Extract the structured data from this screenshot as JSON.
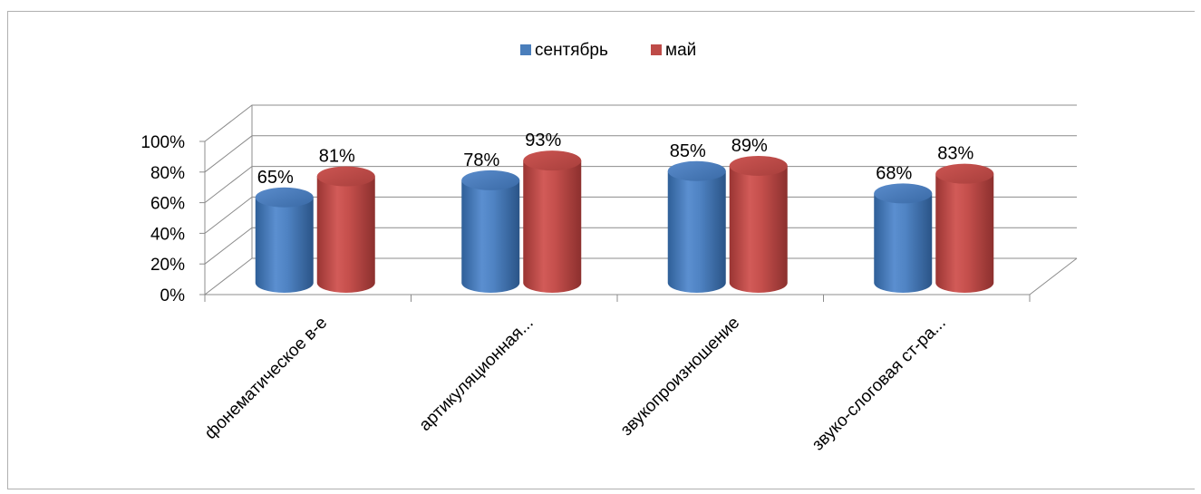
{
  "chart_data": {
    "type": "bar",
    "categories": [
      "фонематическое в-е",
      "артикуляционная...",
      "звукопроизношение",
      "звуко-слоговая ст-ра..."
    ],
    "series": [
      {
        "name": "сентябрь",
        "values": [
          65,
          78,
          85,
          68
        ],
        "labels": [
          "65%",
          "78%",
          "85%",
          "68%"
        ],
        "color": "#4a7ebb"
      },
      {
        "name": "май",
        "values": [
          81,
          93,
          89,
          83
        ],
        "labels": [
          "81%",
          "93%",
          "89%",
          "83%"
        ],
        "color": "#be4b48"
      }
    ],
    "yticks": [
      "0%",
      "20%",
      "40%",
      "60%",
      "80%",
      "100%"
    ],
    "ylim": [
      0,
      100
    ],
    "grid": true,
    "legend_position": "top",
    "style": "3d-cylinder"
  }
}
